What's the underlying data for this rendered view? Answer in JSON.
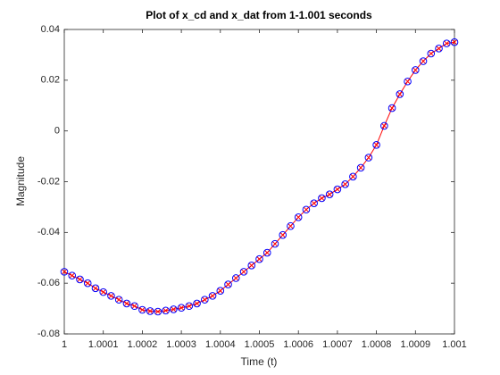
{
  "chart_data": {
    "type": "line",
    "title": "Plot of x_cd and x_dat from 1-1.001 seconds",
    "x_label": "Time (t)",
    "y_label": "Magnitude",
    "x": [
      1,
      1.00002,
      1.00004,
      1.00006,
      1.00008,
      1.0001,
      1.00012,
      1.00014,
      1.00016,
      1.00018,
      1.0002,
      1.00022,
      1.00024,
      1.00026,
      1.00028,
      1.0003,
      1.00032,
      1.00034,
      1.00036,
      1.00038,
      1.0004,
      1.00042,
      1.00044,
      1.00046,
      1.00048,
      1.0005,
      1.00052,
      1.00054,
      1.00056,
      1.00058,
      1.0006,
      1.00062,
      1.00064,
      1.00066,
      1.00068,
      1.0007,
      1.00072,
      1.00074,
      1.00076,
      1.00078,
      1.0008,
      1.00082,
      1.00084,
      1.00086,
      1.00088,
      1.0009,
      1.00092,
      1.00094,
      1.00096,
      1.00098,
      1.001
    ],
    "series": [
      {
        "color": "#ff0000",
        "marker": "x",
        "line": true,
        "values": [
          -0.0555,
          -0.057,
          -0.0585,
          -0.06,
          -0.062,
          -0.0635,
          -0.065,
          -0.0665,
          -0.068,
          -0.069,
          -0.0705,
          -0.071,
          -0.0712,
          -0.0708,
          -0.0703,
          -0.0697,
          -0.069,
          -0.068,
          -0.0665,
          -0.065,
          -0.063,
          -0.0605,
          -0.058,
          -0.0555,
          -0.053,
          -0.0505,
          -0.048,
          -0.0445,
          -0.041,
          -0.0375,
          -0.034,
          -0.031,
          -0.0285,
          -0.0265,
          -0.025,
          -0.023,
          -0.021,
          -0.018,
          -0.0145,
          -0.0105,
          -0.0055,
          0.002,
          0.009,
          0.0145,
          0.0195,
          0.024,
          0.0275,
          0.0305,
          0.0325,
          0.0345,
          0.035
        ]
      },
      {
        "color": "#0000ff",
        "marker": "o",
        "line": false,
        "values": [
          -0.0555,
          -0.057,
          -0.0585,
          -0.06,
          -0.062,
          -0.0635,
          -0.065,
          -0.0665,
          -0.068,
          -0.069,
          -0.0705,
          -0.071,
          -0.0712,
          -0.0708,
          -0.0703,
          -0.0697,
          -0.069,
          -0.068,
          -0.0665,
          -0.065,
          -0.063,
          -0.0605,
          -0.058,
          -0.0555,
          -0.053,
          -0.0505,
          -0.048,
          -0.0445,
          -0.041,
          -0.0375,
          -0.034,
          -0.031,
          -0.0285,
          -0.0265,
          -0.025,
          -0.023,
          -0.021,
          -0.018,
          -0.0145,
          -0.0105,
          -0.0055,
          0.002,
          0.009,
          0.0145,
          0.0195,
          0.024,
          0.0275,
          0.0305,
          0.0325,
          0.0345,
          0.035
        ]
      }
    ],
    "xlim": [
      1,
      1.001
    ],
    "xticks": [
      1,
      1.0001,
      1.0002,
      1.0003,
      1.0004,
      1.0005,
      1.0006,
      1.0007,
      1.0008,
      1.0009,
      1.001
    ],
    "ylim": [
      -0.08,
      0.04
    ],
    "yticks": [
      -0.08,
      -0.06,
      -0.04,
      -0.02,
      0,
      0.02,
      0.04
    ],
    "grid": false,
    "box": true
  }
}
